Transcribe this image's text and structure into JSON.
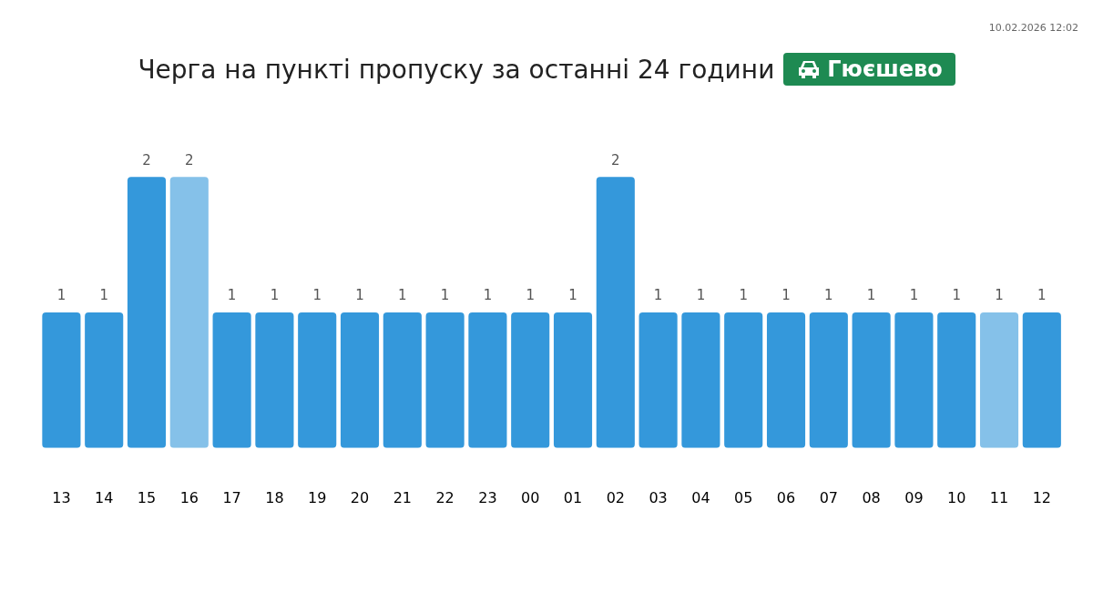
{
  "chart_data": {
    "type": "bar",
    "title": "Черга на пункті пропуску за останні 24 години",
    "subtitle": "Гюєшево",
    "annotations": [
      "10.02.2026 12:02"
    ],
    "categories": [
      "13",
      "14",
      "15",
      "16",
      "17",
      "18",
      "19",
      "20",
      "21",
      "22",
      "23",
      "00",
      "01",
      "02",
      "03",
      "04",
      "05",
      "06",
      "07",
      "08",
      "09",
      "10",
      "11",
      "12"
    ],
    "values": [
      1,
      1,
      2,
      2,
      1,
      1,
      1,
      1,
      1,
      1,
      1,
      1,
      1,
      2,
      1,
      1,
      1,
      1,
      1,
      1,
      1,
      1,
      1,
      1
    ],
    "colors": [
      "#3498db",
      "#3498db",
      "#3498db",
      "#85c1e9",
      "#3498db",
      "#3498db",
      "#3498db",
      "#3498db",
      "#3498db",
      "#3498db",
      "#3498db",
      "#3498db",
      "#3498db",
      "#3498db",
      "#3498db",
      "#3498db",
      "#3498db",
      "#3498db",
      "#3498db",
      "#3498db",
      "#3498db",
      "#3498db",
      "#85c1e9",
      "#3498db"
    ],
    "data_labels": true,
    "grid": false,
    "legend": false,
    "tick_labels": "x"
  }
}
